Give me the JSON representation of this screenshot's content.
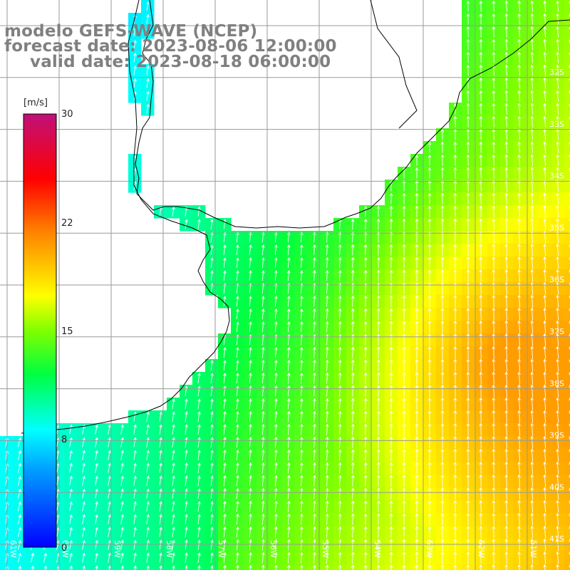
{
  "title": {
    "line1": "modelo GEFS-WAVE (NCEP)",
    "line2": "forecast date: 2023-08-06 12:00:00",
    "line3": "valid date: 2023-08-18 06:00:00"
  },
  "colorbar": {
    "unit": "[m/s]",
    "ticks": [
      "30",
      "22",
      "15",
      "8",
      "0"
    ],
    "range": [
      0,
      30
    ],
    "colors": [
      "#0000ff",
      "#00c0ff",
      "#00ffff",
      "#00e000",
      "#ffff00",
      "#ff8000",
      "#ff0000",
      "#c0107a"
    ]
  },
  "lat_labels": [
    "32S",
    "33S",
    "34S",
    "35S",
    "36S",
    "37S",
    "38S",
    "39S",
    "40S",
    "41S"
  ],
  "lon_labels": [
    "61W",
    "60W",
    "59W",
    "58W",
    "57W",
    "56W",
    "55W",
    "54W",
    "53W",
    "52W",
    "51W"
  ],
  "colors": {
    "land": "#ffffff",
    "grid": "#9a9a9a",
    "coast": "#000000",
    "arrow": "#ffffff",
    "title": "#808080"
  },
  "field": {
    "variable": "wind speed",
    "description_values": [
      {
        "region": "near coast",
        "speed": 8
      },
      {
        "region": "central",
        "speed": 12
      },
      {
        "region": "southeast",
        "speed": 18
      }
    ]
  }
}
